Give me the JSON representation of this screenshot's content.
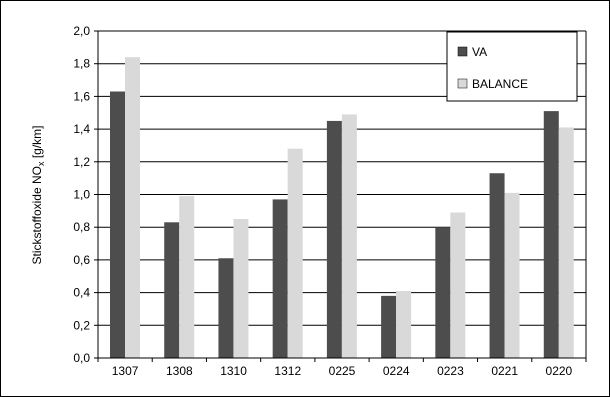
{
  "chart_data": {
    "type": "bar",
    "title": "",
    "xlabel": "",
    "ylabel_main": "Stickstoffoxide NO",
    "ylabel_sub": "x",
    "ylabel_unit": " [g/km]",
    "categories": [
      "1307",
      "1308",
      "1310",
      "1312",
      "0225",
      "0224",
      "0223",
      "0221",
      "0220"
    ],
    "series": [
      {
        "name": "VA",
        "color": "#4d4d4d",
        "values": [
          1.63,
          0.83,
          0.61,
          0.97,
          1.45,
          0.38,
          0.8,
          1.13,
          1.51
        ]
      },
      {
        "name": "BALANCE",
        "color": "#d9d9d9",
        "values": [
          1.84,
          0.99,
          0.85,
          1.28,
          1.49,
          0.41,
          0.89,
          1.01,
          1.41
        ]
      }
    ],
    "ylim": [
      0,
      2.0
    ],
    "yticks": [
      "0,0",
      "0,2",
      "0,4",
      "0,6",
      "0,8",
      "1,0",
      "1,2",
      "1,4",
      "1,6",
      "1,8",
      "2,0"
    ],
    "grid": "horizontal",
    "legend_position": "top-right"
  }
}
